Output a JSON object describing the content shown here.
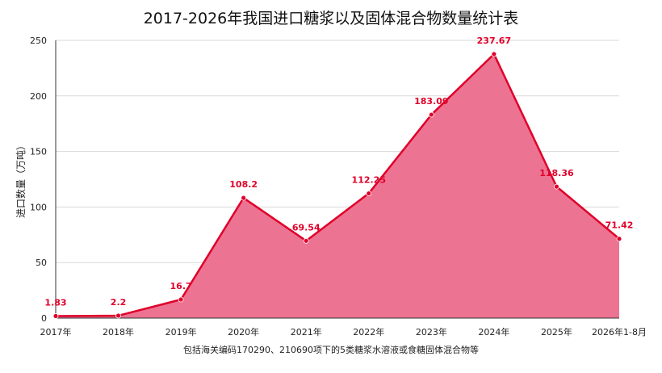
{
  "chart_data": {
    "type": "area",
    "title": "2017-2026年我国进口糖浆以及固体混合物数量统计表",
    "ylabel": "进口数量（万吨）",
    "xlabel": "",
    "footnote": "包括海关编码170290、210690项下的5类糖浆水溶液或食糖固体混合物等",
    "categories": [
      "2017年",
      "2018年",
      "2019年",
      "2020年",
      "2021年",
      "2022年",
      "2023年",
      "2024年",
      "2025年",
      "2026年1-8月"
    ],
    "series": [
      {
        "values": [
          1.83,
          2.2,
          16.7,
          108.2,
          69.54,
          112.25,
          183.09,
          237.67,
          118.36,
          71.42
        ],
        "labels": [
          "1.83",
          "2.2",
          "16.7",
          "108.2",
          "69.54",
          "112.25",
          "183.09",
          "237.67",
          "118.36",
          "71.42"
        ]
      }
    ],
    "ylim": [
      0,
      250
    ],
    "yticks": [
      0,
      50,
      100,
      150,
      200,
      250
    ],
    "grid": true,
    "legend": "none",
    "colors": {
      "line": "#e0002a",
      "fill": "#ed7392",
      "grid": "#d9d9d9"
    }
  }
}
